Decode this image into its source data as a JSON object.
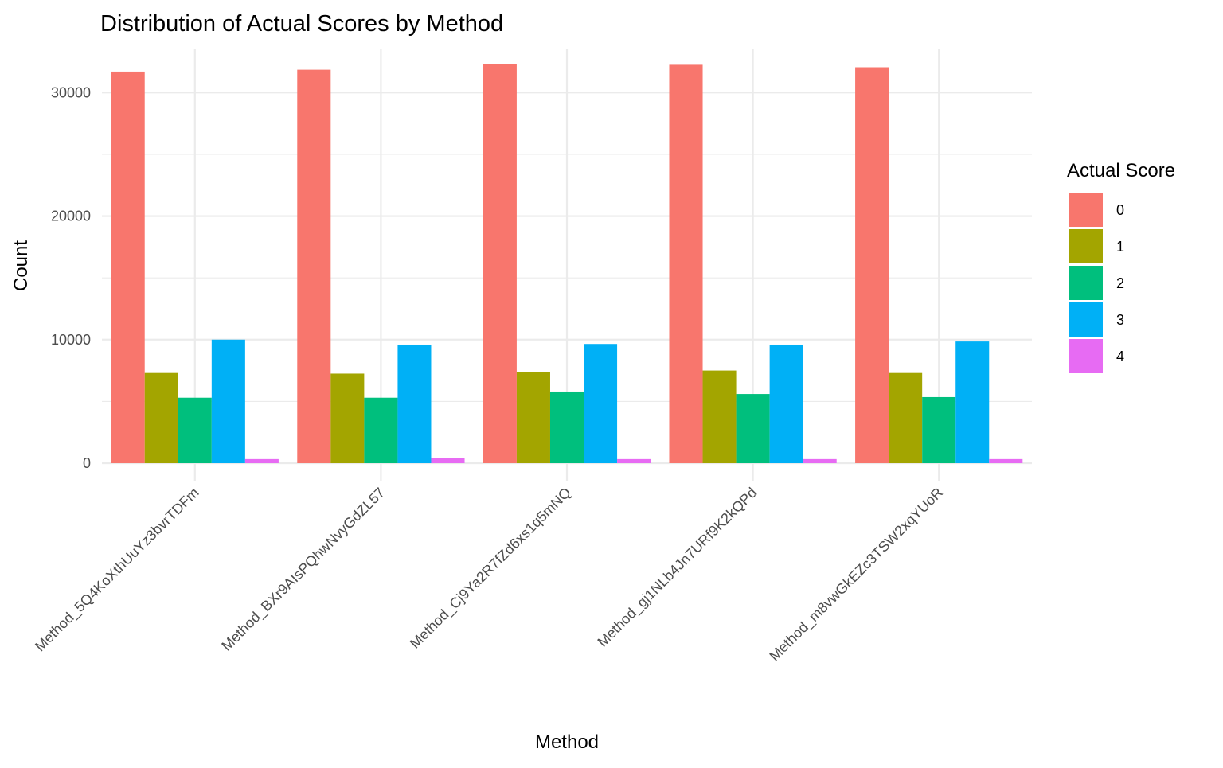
{
  "chart_data": {
    "type": "bar",
    "title": "Distribution of Actual Scores by Method",
    "xlabel": "Method",
    "ylabel": "Count",
    "categories": [
      "Method_5Q4KoXthUuYz3bvrTDFm",
      "Method_BXr9AIsPQhwNvyGdZL57",
      "Method_Cj9Ya2R7fZd6xs1q5mNQ",
      "Method_gj1NLb4Jn7URf9K2kQPd",
      "Method_m8vwGkEZc3TSW2xqYUoR"
    ],
    "series": [
      {
        "name": "0",
        "color": "#F8766D",
        "values": [
          31700,
          31850,
          32300,
          32250,
          32050
        ]
      },
      {
        "name": "1",
        "color": "#A3A500",
        "values": [
          7300,
          7250,
          7350,
          7500,
          7300
        ]
      },
      {
        "name": "2",
        "color": "#00BF7D",
        "values": [
          5300,
          5300,
          5800,
          5600,
          5350
        ]
      },
      {
        "name": "3",
        "color": "#00B0F6",
        "values": [
          10000,
          9600,
          9650,
          9600,
          9850
        ]
      },
      {
        "name": "4",
        "color": "#E76BF3",
        "values": [
          330,
          420,
          330,
          330,
          330
        ]
      }
    ],
    "yticks": [
      0,
      10000,
      20000,
      30000
    ],
    "ylim": [
      0,
      33500
    ],
    "grid": true,
    "legend": {
      "title": "Actual Score",
      "placement": "right"
    }
  }
}
